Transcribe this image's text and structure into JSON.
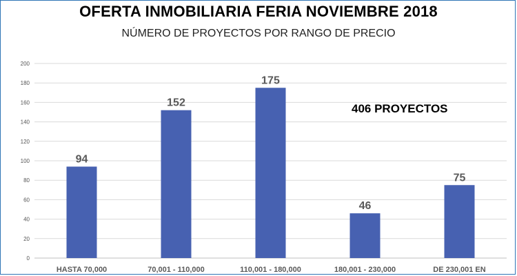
{
  "header": {
    "title": "OFERTA INMOBILIARIA FERIA NOVIEMBRE 2018",
    "subtitle": "NÚMERO DE PROYECTOS POR RANGO DE PRECIO",
    "annotation": "406 PROYECTOS"
  },
  "colors": {
    "bar": "#4761b1",
    "grid": "#d9d9d9",
    "axis": "#bfbfbf",
    "frame": "#2e75b6"
  },
  "chart_data": {
    "type": "bar",
    "title": "OFERTA INMOBILIARIA FERIA NOVIEMBRE 2018",
    "subtitle": "NÚMERO DE PROYECTOS POR RANGO DE PRECIO",
    "categories": [
      "HASTA 70,000",
      "70,001 - 110,000",
      "110,001 - 180,000",
      "180,001 - 230,000",
      "DE 230,001 EN"
    ],
    "values": [
      94,
      152,
      175,
      46,
      75
    ],
    "ylim": [
      0,
      200
    ],
    "yticks": [
      0,
      20,
      40,
      60,
      80,
      100,
      120,
      140,
      160,
      180,
      200
    ],
    "grid": true,
    "legend": "none",
    "data_labels": true,
    "annotation": "406 PROYECTOS"
  }
}
